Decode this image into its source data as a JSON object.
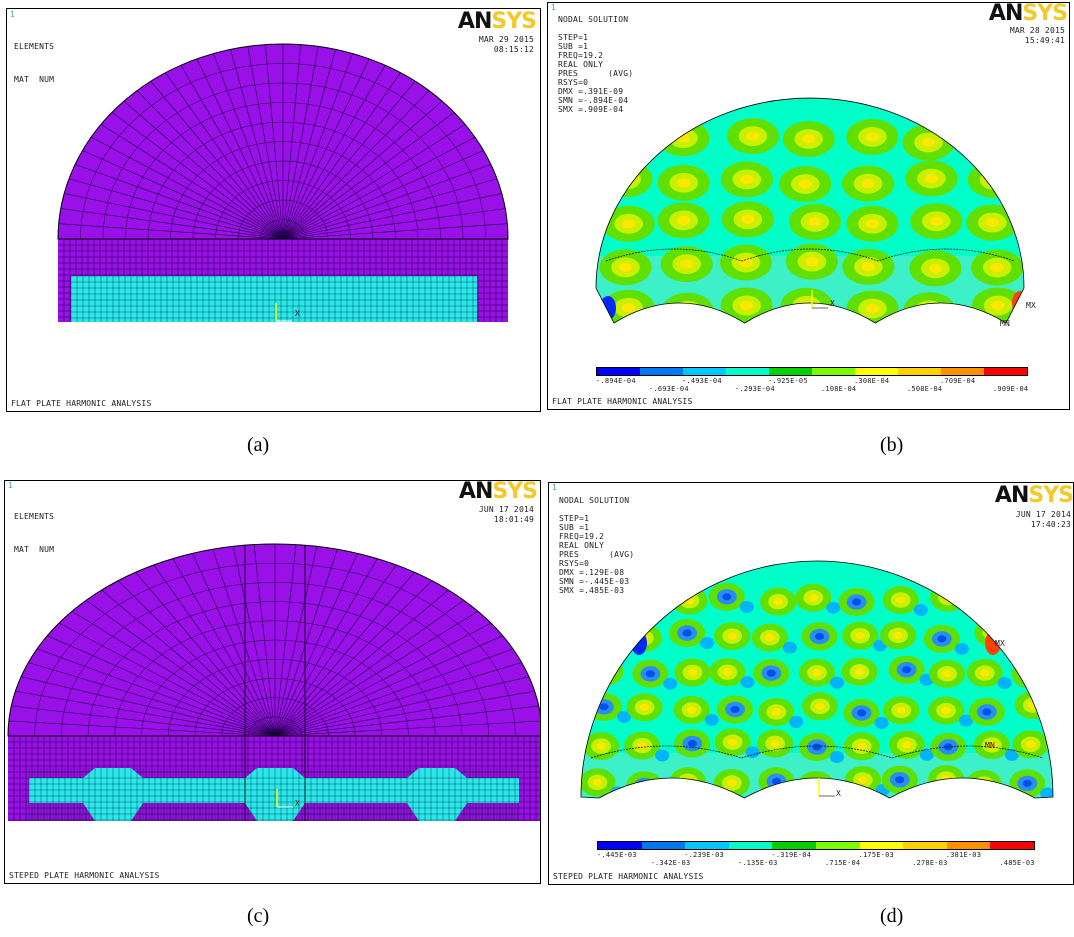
{
  "panels": {
    "a": {
      "window_num": "1",
      "title_lines": [
        "ELEMENTS",
        "MAT  NUM"
      ],
      "date": "MAR 29 2015",
      "time": "08:15:12",
      "footer": "FLAT PLATE HARMONIC ANALYSIS",
      "axis_label": "X",
      "caption": "(a)"
    },
    "b": {
      "window_num": "1",
      "title_lines": [
        "NODAL SOLUTION",
        "",
        "STEP=1",
        "SUB =1",
        "FREQ=19.2",
        "REAL ONLY",
        "PRES      (AVG)",
        "RSYS=0",
        "DMX =.391E-09",
        "SMN =-.894E-04",
        "SMX =.909E-04"
      ],
      "date": "MAR 28 2015",
      "time": "15:49:41",
      "footer": "FLAT PLATE HARMONIC ANALYSIS",
      "mx_label": "MX",
      "mn_label": "MN",
      "axis_label": "X",
      "legend_top": [
        "-.894E-04",
        "-.493E-04",
        "-.925E-05",
        ".308E-04",
        ".709E-04"
      ],
      "legend_bottom": [
        "-.693E-04",
        "-.293E-04",
        ".108E-04",
        ".508E-04",
        ".909E-04"
      ],
      "caption": "(b)"
    },
    "c": {
      "window_num": "1",
      "title_lines": [
        "ELEMENTS",
        "MAT  NUM"
      ],
      "date": "JUN 17 2014",
      "time": "18:01:49",
      "footer": "STEPED PLATE HARMONIC ANALYSIS",
      "axis_label": "X",
      "caption": "(c)"
    },
    "d": {
      "window_num": "1",
      "title_lines": [
        "NODAL SOLUTION",
        "",
        "STEP=1",
        "SUB =1",
        "FREQ=19.2",
        "REAL ONLY",
        "PRES      (AVG)",
        "RSYS=0",
        "DMX =.129E-08",
        "SMN =-.445E-03",
        "SMX =.485E-03"
      ],
      "date": "JUN 17 2014",
      "time": "17:40:23",
      "footer": "STEPED PLATE HARMONIC ANALYSIS",
      "mx_label": "MX",
      "mn_label": "MN",
      "axis_label": "X",
      "legend_top": [
        "-.445E-03",
        "-.239E-03",
        "-.319E-04",
        ".175E-03",
        ".381E-03"
      ],
      "legend_bottom": [
        "-.342E-03",
        "-.135E-03",
        ".715E-04",
        ".278E-03",
        ".485E-03"
      ],
      "caption": "(d)"
    }
  },
  "logo": {
    "an": "AN",
    "sys": "SYS"
  },
  "colors": {
    "mesh_fill": "#9a10e8",
    "mat2_fill": "#29e8ec",
    "contour_scale": [
      "#0000ff",
      "#0078f0",
      "#00c8ff",
      "#00ffc8",
      "#00d000",
      "#7cfc00",
      "#ffff00",
      "#ffd000",
      "#ff9000",
      "#ff0000"
    ]
  }
}
